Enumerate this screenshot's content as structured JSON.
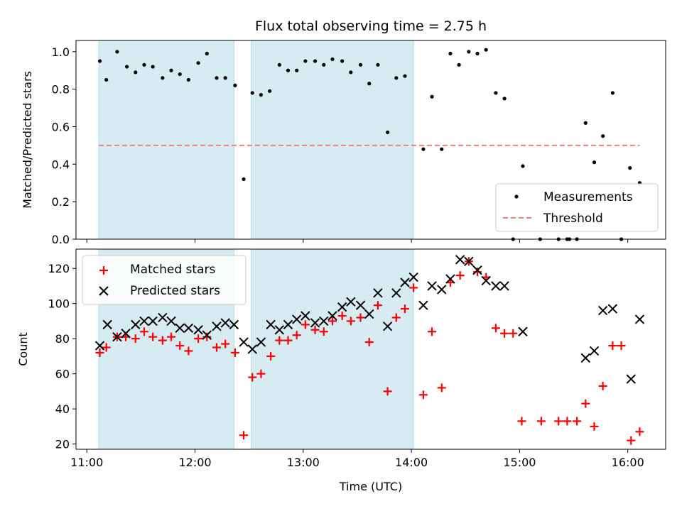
{
  "chart_data": [
    {
      "type": "scatter",
      "title": "Flux total observing time = 2.75 h",
      "xlabel": "",
      "ylabel": "Matched/Predicted stars",
      "xlim": [
        10.9,
        16.35
      ],
      "ylim": [
        0,
        1.06
      ],
      "yticks": [
        0.0,
        0.2,
        0.4,
        0.6,
        0.8,
        1.0
      ],
      "ytick_labels": [
        "0.0",
        "0.2",
        "0.4",
        "0.6",
        "0.8",
        "1.0"
      ],
      "legend_position": "lower-right",
      "shaded_intervals": [
        [
          11.11,
          12.36
        ],
        [
          12.52,
          14.02
        ]
      ],
      "series": [
        {
          "name": "Measurements",
          "marker": "dot",
          "color": "#000000",
          "points": [
            [
              11.12,
              0.95
            ],
            [
              11.18,
              0.85
            ],
            [
              11.28,
              1.0
            ],
            [
              11.37,
              0.92
            ],
            [
              11.45,
              0.89
            ],
            [
              11.53,
              0.93
            ],
            [
              11.61,
              0.92
            ],
            [
              11.7,
              0.86
            ],
            [
              11.78,
              0.9
            ],
            [
              11.86,
              0.88
            ],
            [
              11.94,
              0.85
            ],
            [
              12.03,
              0.94
            ],
            [
              12.11,
              0.99
            ],
            [
              12.2,
              0.86
            ],
            [
              12.28,
              0.86
            ],
            [
              12.37,
              0.82
            ],
            [
              12.45,
              0.32
            ],
            [
              12.53,
              0.78
            ],
            [
              12.61,
              0.77
            ],
            [
              12.69,
              0.79
            ],
            [
              12.78,
              0.93
            ],
            [
              12.86,
              0.9
            ],
            [
              12.94,
              0.9
            ],
            [
              13.02,
              0.95
            ],
            [
              13.11,
              0.95
            ],
            [
              13.19,
              0.93
            ],
            [
              13.27,
              0.96
            ],
            [
              13.36,
              0.95
            ],
            [
              13.44,
              0.89
            ],
            [
              13.53,
              0.93
            ],
            [
              13.61,
              0.83
            ],
            [
              13.69,
              0.93
            ],
            [
              13.78,
              0.57
            ],
            [
              13.86,
              0.86
            ],
            [
              13.94,
              0.87
            ],
            [
              14.11,
              0.48
            ],
            [
              14.19,
              0.76
            ],
            [
              14.28,
              0.48
            ],
            [
              14.36,
              0.99
            ],
            [
              14.44,
              0.93
            ],
            [
              14.53,
              1.0
            ],
            [
              14.61,
              0.99
            ],
            [
              14.69,
              1.01
            ],
            [
              14.78,
              0.78
            ],
            [
              14.86,
              0.75
            ],
            [
              14.94,
              0.0
            ],
            [
              15.03,
              0.39
            ],
            [
              15.19,
              0.0
            ],
            [
              15.36,
              0.0
            ],
            [
              15.44,
              0.0
            ],
            [
              15.46,
              0.0
            ],
            [
              15.53,
              0.0
            ],
            [
              15.61,
              0.62
            ],
            [
              15.69,
              0.41
            ],
            [
              15.77,
              0.55
            ],
            [
              15.86,
              0.78
            ],
            [
              15.94,
              0.0
            ],
            [
              16.02,
              0.38
            ],
            [
              16.11,
              0.3
            ]
          ]
        },
        {
          "name": "Threshold",
          "marker": "dashed-line",
          "color": "#f08080",
          "points": [
            [
              11.11,
              0.5
            ],
            [
              16.11,
              0.5
            ]
          ]
        }
      ]
    },
    {
      "type": "scatter",
      "title": "",
      "xlabel": "Time (UTC)",
      "ylabel": "Count",
      "xlim": [
        10.9,
        16.35
      ],
      "ylim": [
        17,
        131
      ],
      "yticks": [
        20,
        40,
        60,
        80,
        100,
        120
      ],
      "ytick_labels": [
        "20",
        "40",
        "60",
        "80",
        "100",
        "120"
      ],
      "xticks": [
        11,
        12,
        13,
        14,
        15,
        16
      ],
      "xtick_labels": [
        "11:00",
        "12:00",
        "13:00",
        "14:00",
        "15:00",
        "16:00"
      ],
      "legend_position": "upper-left",
      "shaded_intervals": [
        [
          11.11,
          12.36
        ],
        [
          12.52,
          14.02
        ]
      ],
      "series": [
        {
          "name": "Matched stars",
          "marker": "plus",
          "color": "#ff0000",
          "points": [
            [
              11.12,
              72
            ],
            [
              11.18,
              75
            ],
            [
              11.28,
              81
            ],
            [
              11.36,
              81
            ],
            [
              11.45,
              80
            ],
            [
              11.53,
              84
            ],
            [
              11.61,
              81
            ],
            [
              11.7,
              79
            ],
            [
              11.78,
              81
            ],
            [
              11.86,
              76
            ],
            [
              11.94,
              73
            ],
            [
              12.03,
              80
            ],
            [
              12.11,
              81
            ],
            [
              12.2,
              75
            ],
            [
              12.28,
              77
            ],
            [
              12.37,
              72
            ],
            [
              12.45,
              25
            ],
            [
              12.53,
              58
            ],
            [
              12.61,
              60
            ],
            [
              12.7,
              70
            ],
            [
              12.78,
              79
            ],
            [
              12.86,
              79
            ],
            [
              12.94,
              82
            ],
            [
              13.02,
              88
            ],
            [
              13.11,
              85
            ],
            [
              13.19,
              84
            ],
            [
              13.27,
              90
            ],
            [
              13.36,
              93
            ],
            [
              13.44,
              90
            ],
            [
              13.53,
              92
            ],
            [
              13.61,
              78
            ],
            [
              13.69,
              99
            ],
            [
              13.78,
              50
            ],
            [
              13.86,
              92
            ],
            [
              13.94,
              97
            ],
            [
              14.02,
              109
            ],
            [
              14.11,
              48
            ],
            [
              14.19,
              84
            ],
            [
              14.28,
              52
            ],
            [
              14.36,
              112
            ],
            [
              14.45,
              116
            ],
            [
              14.53,
              124
            ],
            [
              14.61,
              118
            ],
            [
              14.69,
              115
            ],
            [
              14.78,
              86
            ],
            [
              14.86,
              83
            ],
            [
              14.94,
              83
            ],
            [
              15.02,
              33
            ],
            [
              15.2,
              33
            ],
            [
              15.36,
              33
            ],
            [
              15.44,
              33
            ],
            [
              15.53,
              33
            ],
            [
              15.61,
              43
            ],
            [
              15.69,
              30
            ],
            [
              15.77,
              53
            ],
            [
              15.86,
              76
            ],
            [
              15.94,
              76
            ],
            [
              16.03,
              22
            ],
            [
              16.11,
              27
            ]
          ]
        },
        {
          "name": "Predicted stars",
          "marker": "x",
          "color": "#000000",
          "points": [
            [
              11.12,
              76
            ],
            [
              11.19,
              88
            ],
            [
              11.28,
              81
            ],
            [
              11.36,
              83
            ],
            [
              11.45,
              88
            ],
            [
              11.53,
              90
            ],
            [
              11.61,
              90
            ],
            [
              11.7,
              92
            ],
            [
              11.78,
              90
            ],
            [
              11.86,
              86
            ],
            [
              11.94,
              86
            ],
            [
              12.03,
              85
            ],
            [
              12.11,
              82
            ],
            [
              12.2,
              87
            ],
            [
              12.28,
              89
            ],
            [
              12.36,
              88
            ],
            [
              12.45,
              78
            ],
            [
              12.53,
              74
            ],
            [
              12.61,
              78
            ],
            [
              12.7,
              88
            ],
            [
              12.78,
              85
            ],
            [
              12.86,
              88
            ],
            [
              12.94,
              91
            ],
            [
              13.02,
              93
            ],
            [
              13.11,
              89
            ],
            [
              13.19,
              90
            ],
            [
              13.27,
              93
            ],
            [
              13.36,
              98
            ],
            [
              13.44,
              101
            ],
            [
              13.53,
              99
            ],
            [
              13.61,
              94
            ],
            [
              13.69,
              106
            ],
            [
              13.78,
              87
            ],
            [
              13.86,
              106
            ],
            [
              13.94,
              112
            ],
            [
              14.02,
              115
            ],
            [
              14.11,
              99
            ],
            [
              14.19,
              110
            ],
            [
              14.28,
              108
            ],
            [
              14.36,
              114
            ],
            [
              14.45,
              125
            ],
            [
              14.53,
              124
            ],
            [
              14.61,
              119
            ],
            [
              14.69,
              113
            ],
            [
              14.78,
              110
            ],
            [
              14.86,
              110
            ],
            [
              15.03,
              84
            ],
            [
              15.61,
              69
            ],
            [
              15.69,
              73
            ],
            [
              15.77,
              96
            ],
            [
              15.86,
              97
            ],
            [
              16.03,
              57
            ],
            [
              16.11,
              91
            ]
          ]
        }
      ]
    }
  ]
}
